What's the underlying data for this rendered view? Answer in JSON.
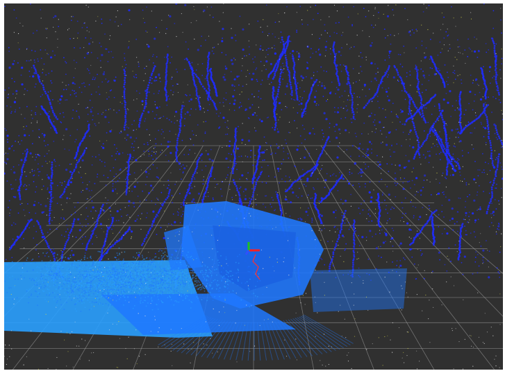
{
  "viewer": {
    "background_color": "#303030",
    "grid_color": "#a8a8a8",
    "point_colors": {
      "sparse_blue": "#1f2cff",
      "dense_blue": "#1f78ff",
      "light_blue": "#2aa0ff",
      "speck_white": "#e8e8e8",
      "speck_yellow": "#d8d84a"
    },
    "axes_marker": {
      "x_color": "#ff2020",
      "y_color": "#20c020",
      "z_color": "#3050ff"
    },
    "trajectory_color": "#ff3030"
  }
}
